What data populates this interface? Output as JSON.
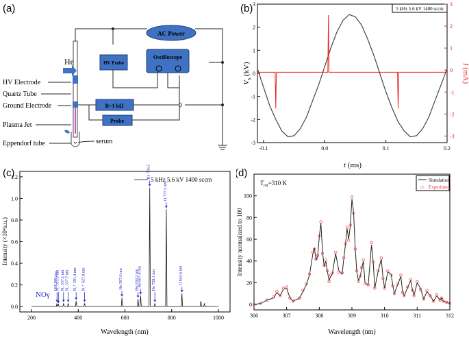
{
  "panels": {
    "a": {
      "label": "(a)",
      "ac_power": "AC Power",
      "hv_probe": "HV Probe",
      "oscilloscope": "Oscilloscope",
      "resistor": "R~1 kΩ",
      "probe": "Probe",
      "gas_label": "He",
      "labels": [
        "HV Electrode",
        "Quartz Tube",
        "Ground Electrode",
        "Plasma Jet",
        "Eppendorf tube"
      ],
      "serum": "serum"
    },
    "b": {
      "label": "(b)"
    },
    "c": {
      "label": "(c)"
    },
    "d": {
      "label": "(d)"
    }
  },
  "chart_data": [
    {
      "id": "b",
      "type": "line",
      "title": "5 kHz 5.6 kV 1400 sccm",
      "xlabel": "t (ms)",
      "xlabel_var": "t",
      "xlabel_unit": " (ms)",
      "ylabel_left": "Vs (kV)",
      "ylabel_left_var": "V",
      "ylabel_left_sub": "s",
      "ylabel_left_unit": " (kV)",
      "ylabel_right": "I (mA)",
      "ylabel_right_var": "I",
      "ylabel_right_unit": " (mA)",
      "xlim": [
        -0.11,
        0.2
      ],
      "ylim_left": [
        -3,
        3
      ],
      "ylim_right": [
        -3.3,
        3
      ],
      "xticks": [
        -0.1,
        0.0,
        0.1,
        0.2
      ],
      "xtick_labels": [
        "-0.1",
        "0.0",
        "0.1",
        "0.2"
      ],
      "yticks_left": [
        -3,
        -2,
        -1,
        0,
        1,
        2,
        3
      ],
      "yticks_right": [
        -3,
        -2,
        -1,
        0,
        1,
        2,
        3
      ],
      "series": [
        {
          "name": "Voltage",
          "axis": "left",
          "color": "#444444",
          "x": [
            -0.11,
            -0.1,
            -0.09,
            -0.08,
            -0.07,
            -0.06,
            -0.05,
            -0.04,
            -0.03,
            -0.02,
            -0.01,
            0.0,
            0.01,
            0.02,
            0.03,
            0.04,
            0.05,
            0.06,
            0.07,
            0.08,
            0.09,
            0.1,
            0.11,
            0.12,
            0.13,
            0.14,
            0.15,
            0.16,
            0.17,
            0.18,
            0.19,
            0.2
          ],
          "y": [
            0.2,
            -0.6,
            -1.4,
            -2.0,
            -2.5,
            -2.75,
            -2.7,
            -2.4,
            -1.9,
            -1.2,
            -0.5,
            0.3,
            1.1,
            1.8,
            2.3,
            2.55,
            2.45,
            2.1,
            1.5,
            0.8,
            0.0,
            -0.8,
            -1.5,
            -2.1,
            -2.5,
            -2.75,
            -2.7,
            -2.4,
            -1.9,
            -1.2,
            -0.5,
            0.2
          ]
        },
        {
          "name": "Current",
          "axis": "right",
          "color": "#ee2222",
          "x": [
            -0.11,
            -0.081,
            -0.08,
            -0.079,
            0.005,
            0.006,
            0.007,
            0.119,
            0.12,
            0.121,
            0.2
          ],
          "y": [
            -0.1,
            -0.1,
            -1.75,
            -0.1,
            -0.1,
            2.5,
            -0.1,
            -0.1,
            -1.75,
            -0.1,
            -0.1
          ]
        }
      ]
    },
    {
      "id": "c",
      "type": "line",
      "legend": "5 kHz 5.6 kV 1400 sccm",
      "xlabel": "Wavelength (nm)",
      "ylabel": "Intensity (×10⁴a.u.)",
      "xlim": [
        150,
        1050
      ],
      "ylim": [
        -0.05,
        1.25
      ],
      "xticks": [
        200,
        400,
        600,
        800,
        1000
      ],
      "yticks": [
        0.0,
        0.2,
        0.4,
        0.6,
        0.8,
        1.0,
        1.2
      ],
      "ytick_labels": [
        "0.0",
        "0.2",
        "0.4",
        "0.6",
        "0.8",
        "1.0",
        "1.2"
      ],
      "peaks": [
        {
          "wavelength": 309,
          "intensity": 0.03,
          "label": "OH 309 nm"
        },
        {
          "wavelength": 315,
          "intensity": 0.02,
          "label": "N₂ 315.9 nm"
        },
        {
          "wavelength": 337,
          "intensity": 0.03,
          "label": "N₂ 337.1 nm"
        },
        {
          "wavelength": 357,
          "intensity": 0.03,
          "label": "N₂ 357.7 nm"
        },
        {
          "wavelength": 391,
          "intensity": 0.05,
          "label": "N₂⁺ 391.4 nm"
        },
        {
          "wavelength": 427,
          "intensity": 0.03,
          "label": "N₂⁺ 427.8 nm"
        },
        {
          "wavelength": 587,
          "intensity": 0.08,
          "label": "He 587.6 nm"
        },
        {
          "wavelength": 656,
          "intensity": 0.07,
          "label": "Hα 656.3 nm"
        },
        {
          "wavelength": 667,
          "intensity": 0.1,
          "label": "He 667.8 nm"
        },
        {
          "wavelength": 706,
          "intensity": 1.1,
          "label": "He 706.5 nm"
        },
        {
          "wavelength": 728,
          "intensity": 0.03,
          "label": "He 728.1 nm"
        },
        {
          "wavelength": 777,
          "intensity": 0.9,
          "label": "O 777.2 nm"
        },
        {
          "wavelength": 844,
          "intensity": 0.12,
          "label": "O 844.6 nm"
        },
        {
          "wavelength": 925,
          "intensity": 0.05,
          "label": ""
        },
        {
          "wavelength": 940,
          "intensity": 0.03,
          "label": ""
        }
      ],
      "annotation": "NOγ"
    },
    {
      "id": "d",
      "type": "line",
      "xlabel": "Wavelength (nm)",
      "ylabel": "Intensity normalized to 100",
      "xlim": [
        306,
        312
      ],
      "ylim": [
        -5,
        120
      ],
      "xticks": [
        306,
        307,
        308,
        309,
        310,
        311,
        312
      ],
      "yticks": [
        0,
        20,
        40,
        60,
        80,
        100
      ],
      "annotation": "T",
      "annotation_sub": "rot",
      "annotation_rest": "=310 K",
      "legend": [
        "Simulation",
        "Experiment"
      ],
      "series": [
        {
          "name": "Simulation",
          "color": "#222222",
          "x": [
            306.0,
            306.2,
            306.4,
            306.6,
            306.7,
            306.8,
            306.9,
            307.0,
            307.1,
            307.2,
            307.4,
            307.5,
            307.6,
            307.7,
            307.8,
            307.85,
            307.9,
            307.95,
            308.0,
            308.05,
            308.1,
            308.15,
            308.2,
            308.25,
            308.3,
            308.35,
            308.4,
            308.5,
            308.6,
            308.7,
            308.75,
            308.8,
            308.85,
            308.9,
            308.95,
            309.0,
            309.05,
            309.1,
            309.15,
            309.2,
            309.25,
            309.3,
            309.35,
            309.4,
            309.5,
            309.6,
            309.65,
            309.7,
            309.8,
            309.9,
            309.95,
            310.0,
            310.1,
            310.2,
            310.25,
            310.3,
            310.4,
            310.5,
            310.55,
            310.6,
            310.7,
            310.8,
            310.85,
            310.9,
            311.0,
            311.1,
            311.2,
            311.3,
            311.4,
            311.5,
            311.6,
            311.7,
            311.75,
            311.8,
            311.9,
            312.0
          ],
          "y": [
            0,
            1,
            4,
            6,
            11,
            8,
            14,
            15,
            6,
            3,
            6,
            12,
            18,
            27,
            46,
            52,
            41,
            44,
            62,
            75,
            48,
            35,
            40,
            30,
            22,
            26,
            28,
            47,
            31,
            28,
            42,
            55,
            70,
            60,
            72,
            97,
            85,
            52,
            30,
            22,
            25,
            33,
            40,
            20,
            18,
            55,
            40,
            15,
            30,
            42,
            25,
            15,
            30,
            28,
            18,
            10,
            18,
            26,
            12,
            8,
            15,
            22,
            14,
            8,
            20,
            15,
            5,
            12,
            8,
            3,
            8,
            4,
            6,
            3,
            2,
            1
          ]
        },
        {
          "name": "Experiment",
          "color": "#ee3333",
          "x": [
            306.0,
            306.2,
            306.4,
            306.6,
            306.7,
            306.8,
            306.9,
            307.0,
            307.1,
            307.2,
            307.4,
            307.5,
            307.6,
            307.7,
            307.8,
            307.85,
            307.9,
            307.95,
            308.0,
            308.05,
            308.1,
            308.15,
            308.2,
            308.25,
            308.3,
            308.35,
            308.4,
            308.5,
            308.6,
            308.7,
            308.75,
            308.8,
            308.85,
            308.9,
            308.95,
            309.0,
            309.05,
            309.1,
            309.15,
            309.2,
            309.25,
            309.3,
            309.35,
            309.4,
            309.5,
            309.6,
            309.65,
            309.7,
            309.8,
            309.9,
            309.95,
            310.0,
            310.1,
            310.2,
            310.25,
            310.3,
            310.4,
            310.5,
            310.55,
            310.6,
            310.7,
            310.8,
            310.85,
            310.9,
            311.0,
            311.1,
            311.2,
            311.3,
            311.4,
            311.5,
            311.6,
            311.7,
            311.75,
            311.8,
            311.9,
            312.0
          ],
          "y": [
            0,
            1,
            4,
            7,
            12,
            8,
            15,
            16,
            6,
            3,
            6,
            13,
            19,
            28,
            48,
            51,
            42,
            45,
            63,
            76,
            47,
            36,
            41,
            31,
            21,
            27,
            29,
            48,
            30,
            29,
            43,
            56,
            71,
            59,
            73,
            99,
            84,
            51,
            31,
            21,
            26,
            34,
            41,
            19,
            18,
            57,
            39,
            15,
            31,
            43,
            24,
            15,
            31,
            27,
            17,
            10,
            19,
            27,
            11,
            8,
            16,
            23,
            13,
            8,
            21,
            14,
            5,
            13,
            8,
            3,
            9,
            4,
            6,
            3,
            2,
            1
          ]
        }
      ]
    }
  ]
}
